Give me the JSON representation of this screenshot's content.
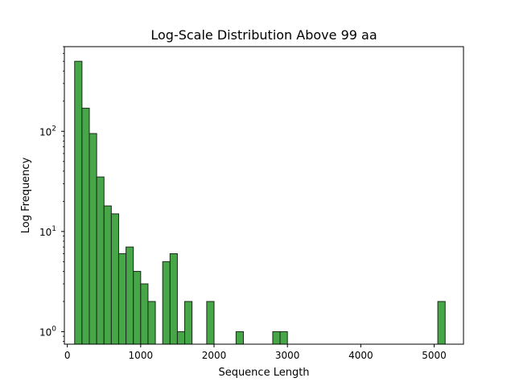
{
  "chart_data": {
    "type": "bar",
    "title": "Log-Scale Distribution Above 99 aa",
    "xlabel": "Sequence Length",
    "ylabel": "Log Frequency",
    "y_scale": "log",
    "xlim": [
      -40,
      5400
    ],
    "ylim": [
      0.75,
      700
    ],
    "x_ticks": [
      {
        "value": 0,
        "label": "0"
      },
      {
        "value": 1000,
        "label": "1000"
      },
      {
        "value": 2000,
        "label": "2000"
      },
      {
        "value": 3000,
        "label": "3000"
      },
      {
        "value": 4000,
        "label": "4000"
      },
      {
        "value": 5000,
        "label": "5000"
      }
    ],
    "y_ticks": [
      {
        "value": 1,
        "label": "10",
        "exp": "0"
      },
      {
        "value": 10,
        "label": "10",
        "exp": "1"
      },
      {
        "value": 100,
        "label": "10",
        "exp": "2"
      }
    ],
    "bar_color": "#2e9a2e",
    "edge_color": "#1a2a1a",
    "bins": [
      {
        "start": 100,
        "end": 200,
        "count": 500
      },
      {
        "start": 200,
        "end": 300,
        "count": 170
      },
      {
        "start": 300,
        "end": 400,
        "count": 95
      },
      {
        "start": 400,
        "end": 500,
        "count": 35
      },
      {
        "start": 500,
        "end": 600,
        "count": 18
      },
      {
        "start": 600,
        "end": 700,
        "count": 15
      },
      {
        "start": 700,
        "end": 800,
        "count": 6
      },
      {
        "start": 800,
        "end": 900,
        "count": 7
      },
      {
        "start": 900,
        "end": 1000,
        "count": 4
      },
      {
        "start": 1000,
        "end": 1100,
        "count": 3
      },
      {
        "start": 1100,
        "end": 1200,
        "count": 2
      },
      {
        "start": 1300,
        "end": 1400,
        "count": 5
      },
      {
        "start": 1400,
        "end": 1500,
        "count": 6
      },
      {
        "start": 1500,
        "end": 1600,
        "count": 1
      },
      {
        "start": 1600,
        "end": 1700,
        "count": 2
      },
      {
        "start": 1900,
        "end": 2000,
        "count": 2
      },
      {
        "start": 2300,
        "end": 2400,
        "count": 1
      },
      {
        "start": 2800,
        "end": 2900,
        "count": 1
      },
      {
        "start": 2900,
        "end": 3000,
        "count": 1
      },
      {
        "start": 5050,
        "end": 5150,
        "count": 2
      }
    ]
  }
}
